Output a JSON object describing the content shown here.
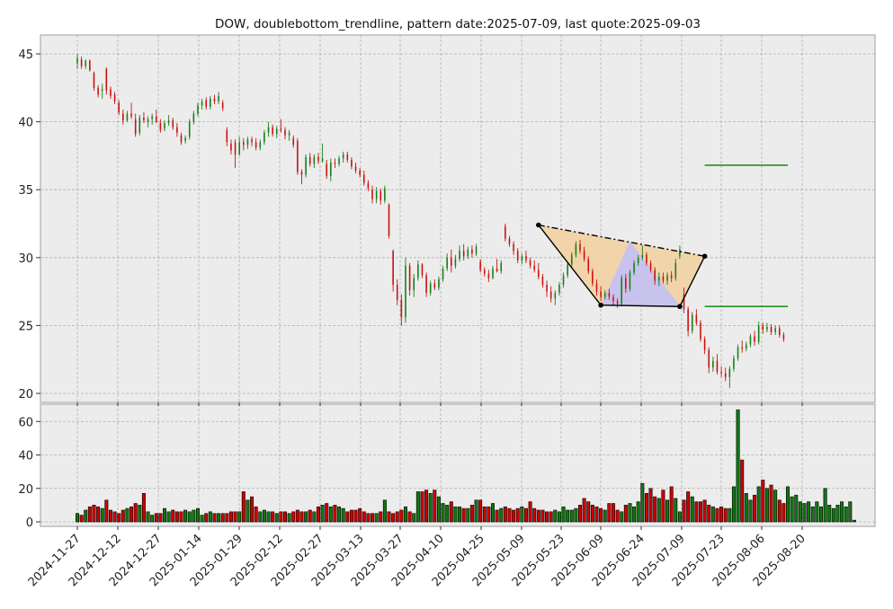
{
  "chart_data": {
    "type": "candlestick",
    "title": "DOW, doublebottom_trendline, pattern date:2025-07-09, last quote:2025-09-03",
    "x_tick_labels": [
      "2024-11-27",
      "2024-12-12",
      "2024-12-27",
      "2025-01-14",
      "2025-01-29",
      "2025-02-12",
      "2025-02-27",
      "2025-03-13",
      "2025-03-27",
      "2025-04-10",
      "2025-04-25",
      "2025-05-09",
      "2025-05-23",
      "2025-06-09",
      "2025-06-24",
      "2025-07-09",
      "2025-07-23",
      "2025-08-06",
      "2025-08-20"
    ],
    "price_axis": {
      "ylim": [
        19.5,
        46.5
      ],
      "ticks": [
        20,
        25,
        30,
        35,
        40,
        45
      ]
    },
    "volume_axis": {
      "ylim": [
        -3,
        70
      ],
      "ticks": [
        0,
        20,
        40,
        60
      ]
    },
    "grid": true,
    "colors": {
      "up": "#1a7f1a",
      "down": "#cc1111",
      "background": "#ececec",
      "pattern_fill": "#f2d3a6",
      "inner_fill": "#c5c2f0",
      "target_line": "#008000"
    },
    "price_series": [
      {
        "o": 44.3,
        "h": 45.0,
        "l": 43.9,
        "c": 44.7
      },
      {
        "o": 44.6,
        "h": 44.8,
        "l": 43.9,
        "c": 44.1
      },
      {
        "o": 44.1,
        "h": 44.6,
        "l": 43.9,
        "c": 44.5
      },
      {
        "o": 44.5,
        "h": 44.6,
        "l": 43.7,
        "c": 43.8
      },
      {
        "o": 43.6,
        "h": 43.7,
        "l": 42.3,
        "c": 42.5
      },
      {
        "o": 42.5,
        "h": 42.7,
        "l": 41.8,
        "c": 42.0
      },
      {
        "o": 42.3,
        "h": 42.8,
        "l": 41.7,
        "c": 42.4
      },
      {
        "o": 43.9,
        "h": 44.0,
        "l": 42.0,
        "c": 42.3
      },
      {
        "o": 42.4,
        "h": 42.6,
        "l": 41.7,
        "c": 41.9
      },
      {
        "o": 42.0,
        "h": 42.2,
        "l": 41.3,
        "c": 41.5
      },
      {
        "o": 41.4,
        "h": 41.6,
        "l": 40.5,
        "c": 40.7
      },
      {
        "o": 40.6,
        "h": 40.9,
        "l": 39.8,
        "c": 40.1
      },
      {
        "o": 40.1,
        "h": 40.8,
        "l": 40.0,
        "c": 40.6
      },
      {
        "o": 40.6,
        "h": 41.4,
        "l": 40.2,
        "c": 40.4
      },
      {
        "o": 40.2,
        "h": 40.6,
        "l": 38.9,
        "c": 39.1
      },
      {
        "o": 39.2,
        "h": 40.5,
        "l": 39.0,
        "c": 40.3
      },
      {
        "o": 40.3,
        "h": 40.7,
        "l": 39.9,
        "c": 40.1
      },
      {
        "o": 40.0,
        "h": 40.4,
        "l": 39.6,
        "c": 40.2
      },
      {
        "o": 40.2,
        "h": 40.6,
        "l": 39.8,
        "c": 40.4
      },
      {
        "o": 40.4,
        "h": 40.9,
        "l": 39.9,
        "c": 40.0
      },
      {
        "o": 39.9,
        "h": 40.2,
        "l": 39.2,
        "c": 39.4
      },
      {
        "o": 39.5,
        "h": 40.1,
        "l": 39.3,
        "c": 39.9
      },
      {
        "o": 39.9,
        "h": 40.5,
        "l": 39.7,
        "c": 40.1
      },
      {
        "o": 40.1,
        "h": 40.3,
        "l": 39.4,
        "c": 39.6
      },
      {
        "o": 39.6,
        "h": 39.9,
        "l": 38.9,
        "c": 39.2
      },
      {
        "o": 39.0,
        "h": 39.2,
        "l": 38.3,
        "c": 38.5
      },
      {
        "o": 38.6,
        "h": 39.0,
        "l": 38.4,
        "c": 38.8
      },
      {
        "o": 38.9,
        "h": 40.2,
        "l": 38.7,
        "c": 40.0
      },
      {
        "o": 40.0,
        "h": 40.8,
        "l": 39.8,
        "c": 40.6
      },
      {
        "o": 40.6,
        "h": 41.4,
        "l": 40.4,
        "c": 41.2
      },
      {
        "o": 41.2,
        "h": 41.7,
        "l": 40.9,
        "c": 41.5
      },
      {
        "o": 41.6,
        "h": 41.8,
        "l": 40.9,
        "c": 41.1
      },
      {
        "o": 41.1,
        "h": 41.9,
        "l": 40.9,
        "c": 41.7
      },
      {
        "o": 41.7,
        "h": 42.0,
        "l": 41.3,
        "c": 41.5
      },
      {
        "o": 41.5,
        "h": 42.2,
        "l": 41.3,
        "c": 41.9
      },
      {
        "o": 41.4,
        "h": 41.6,
        "l": 40.8,
        "c": 41.0
      },
      {
        "o": 39.4,
        "h": 39.6,
        "l": 38.2,
        "c": 38.5
      },
      {
        "o": 38.4,
        "h": 38.7,
        "l": 37.6,
        "c": 37.9
      },
      {
        "o": 38.5,
        "h": 38.7,
        "l": 36.6,
        "c": 37.6
      },
      {
        "o": 37.6,
        "h": 38.9,
        "l": 37.5,
        "c": 38.5
      },
      {
        "o": 38.5,
        "h": 38.8,
        "l": 37.9,
        "c": 38.3
      },
      {
        "o": 38.3,
        "h": 38.9,
        "l": 38.0,
        "c": 38.7
      },
      {
        "o": 38.7,
        "h": 38.9,
        "l": 38.2,
        "c": 38.5
      },
      {
        "o": 38.5,
        "h": 38.8,
        "l": 37.9,
        "c": 38.1
      },
      {
        "o": 38.1,
        "h": 38.7,
        "l": 37.9,
        "c": 38.5
      },
      {
        "o": 38.5,
        "h": 39.4,
        "l": 38.3,
        "c": 39.2
      },
      {
        "o": 39.2,
        "h": 40.0,
        "l": 38.9,
        "c": 39.6
      },
      {
        "o": 39.6,
        "h": 39.8,
        "l": 38.9,
        "c": 39.1
      },
      {
        "o": 39.1,
        "h": 39.7,
        "l": 38.8,
        "c": 39.5
      },
      {
        "o": 39.5,
        "h": 40.2,
        "l": 39.2,
        "c": 39.4
      },
      {
        "o": 39.4,
        "h": 39.6,
        "l": 38.7,
        "c": 39.0
      },
      {
        "o": 39.0,
        "h": 39.4,
        "l": 38.6,
        "c": 39.2
      },
      {
        "o": 38.8,
        "h": 39.0,
        "l": 38.1,
        "c": 38.3
      },
      {
        "o": 38.6,
        "h": 38.8,
        "l": 36.1,
        "c": 36.3
      },
      {
        "o": 36.3,
        "h": 36.5,
        "l": 35.4,
        "c": 36.1
      },
      {
        "o": 36.1,
        "h": 37.6,
        "l": 35.9,
        "c": 37.4
      },
      {
        "o": 37.4,
        "h": 37.7,
        "l": 36.7,
        "c": 36.9
      },
      {
        "o": 36.9,
        "h": 37.6,
        "l": 36.6,
        "c": 37.4
      },
      {
        "o": 37.4,
        "h": 37.7,
        "l": 36.9,
        "c": 37.1
      },
      {
        "o": 37.1,
        "h": 38.4,
        "l": 37.0,
        "c": 37.3
      },
      {
        "o": 36.9,
        "h": 37.2,
        "l": 35.8,
        "c": 36.0
      },
      {
        "o": 36.0,
        "h": 37.3,
        "l": 35.6,
        "c": 37.0
      },
      {
        "o": 37.0,
        "h": 37.3,
        "l": 36.6,
        "c": 36.9
      },
      {
        "o": 36.9,
        "h": 37.5,
        "l": 36.7,
        "c": 37.3
      },
      {
        "o": 37.3,
        "h": 37.8,
        "l": 37.0,
        "c": 37.6
      },
      {
        "o": 37.6,
        "h": 37.8,
        "l": 37.0,
        "c": 37.2
      },
      {
        "o": 37.2,
        "h": 37.4,
        "l": 36.5,
        "c": 36.7
      },
      {
        "o": 36.7,
        "h": 37.0,
        "l": 36.2,
        "c": 36.4
      },
      {
        "o": 36.4,
        "h": 36.6,
        "l": 35.9,
        "c": 36.1
      },
      {
        "o": 36.1,
        "h": 36.4,
        "l": 35.3,
        "c": 35.5
      },
      {
        "o": 35.5,
        "h": 35.7,
        "l": 34.9,
        "c": 35.1
      },
      {
        "o": 35.0,
        "h": 35.3,
        "l": 34.0,
        "c": 34.3
      },
      {
        "o": 34.3,
        "h": 35.2,
        "l": 34.0,
        "c": 34.9
      },
      {
        "o": 34.9,
        "h": 35.1,
        "l": 33.9,
        "c": 34.2
      },
      {
        "o": 34.2,
        "h": 35.3,
        "l": 34.0,
        "c": 35.1
      },
      {
        "o": 33.9,
        "h": 34.0,
        "l": 31.4,
        "c": 31.6
      },
      {
        "o": 30.5,
        "h": 30.6,
        "l": 27.5,
        "c": 28.0
      },
      {
        "o": 28.0,
        "h": 28.4,
        "l": 26.5,
        "c": 26.9
      },
      {
        "o": 26.9,
        "h": 27.3,
        "l": 25.0,
        "c": 25.6
      },
      {
        "o": 25.6,
        "h": 30.0,
        "l": 25.2,
        "c": 29.4
      },
      {
        "o": 29.4,
        "h": 29.6,
        "l": 27.2,
        "c": 27.6
      },
      {
        "o": 27.6,
        "h": 28.8,
        "l": 27.1,
        "c": 28.5
      },
      {
        "o": 28.5,
        "h": 29.8,
        "l": 28.3,
        "c": 29.5
      },
      {
        "o": 29.5,
        "h": 29.6,
        "l": 28.5,
        "c": 28.7
      },
      {
        "o": 28.7,
        "h": 28.9,
        "l": 27.1,
        "c": 27.4
      },
      {
        "o": 27.4,
        "h": 28.3,
        "l": 27.2,
        "c": 28.1
      },
      {
        "o": 28.1,
        "h": 28.4,
        "l": 27.6,
        "c": 27.8
      },
      {
        "o": 27.8,
        "h": 28.6,
        "l": 27.6,
        "c": 28.4
      },
      {
        "o": 28.4,
        "h": 29.4,
        "l": 28.2,
        "c": 29.2
      },
      {
        "o": 29.2,
        "h": 30.3,
        "l": 29.0,
        "c": 30.0
      },
      {
        "o": 30.0,
        "h": 30.6,
        "l": 28.9,
        "c": 29.4
      },
      {
        "o": 29.4,
        "h": 30.2,
        "l": 29.2,
        "c": 29.9
      },
      {
        "o": 29.9,
        "h": 30.9,
        "l": 29.7,
        "c": 30.5
      },
      {
        "o": 30.5,
        "h": 31.0,
        "l": 29.8,
        "c": 30.1
      },
      {
        "o": 30.1,
        "h": 30.8,
        "l": 29.9,
        "c": 30.6
      },
      {
        "o": 30.6,
        "h": 30.9,
        "l": 30.0,
        "c": 30.3
      },
      {
        "o": 30.3,
        "h": 31.0,
        "l": 30.1,
        "c": 30.8
      },
      {
        "o": 29.7,
        "h": 29.9,
        "l": 28.9,
        "c": 29.1
      },
      {
        "o": 29.1,
        "h": 29.3,
        "l": 28.6,
        "c": 28.8
      },
      {
        "o": 28.8,
        "h": 29.1,
        "l": 28.2,
        "c": 28.5
      },
      {
        "o": 28.5,
        "h": 29.4,
        "l": 28.4,
        "c": 29.2
      },
      {
        "o": 29.2,
        "h": 29.9,
        "l": 28.9,
        "c": 29.0
      },
      {
        "o": 29.0,
        "h": 29.8,
        "l": 28.8,
        "c": 29.6
      },
      {
        "o": 32.3,
        "h": 32.5,
        "l": 31.2,
        "c": 31.4
      },
      {
        "o": 31.4,
        "h": 31.6,
        "l": 30.8,
        "c": 31.0
      },
      {
        "o": 31.0,
        "h": 31.2,
        "l": 30.2,
        "c": 30.5
      },
      {
        "o": 30.5,
        "h": 30.7,
        "l": 29.6,
        "c": 29.8
      },
      {
        "o": 29.8,
        "h": 30.3,
        "l": 29.5,
        "c": 30.1
      },
      {
        "o": 30.1,
        "h": 30.5,
        "l": 29.6,
        "c": 29.8
      },
      {
        "o": 29.8,
        "h": 30.0,
        "l": 29.2,
        "c": 29.4
      },
      {
        "o": 29.4,
        "h": 29.8,
        "l": 28.9,
        "c": 29.1
      },
      {
        "o": 29.1,
        "h": 29.6,
        "l": 28.4,
        "c": 28.6
      },
      {
        "o": 28.6,
        "h": 28.8,
        "l": 27.8,
        "c": 28.0
      },
      {
        "o": 28.0,
        "h": 28.3,
        "l": 27.1,
        "c": 27.5
      },
      {
        "o": 27.5,
        "h": 27.9,
        "l": 26.7,
        "c": 27.0
      },
      {
        "o": 27.0,
        "h": 27.6,
        "l": 26.5,
        "c": 27.4
      },
      {
        "o": 27.4,
        "h": 28.2,
        "l": 27.2,
        "c": 28.0
      },
      {
        "o": 28.0,
        "h": 28.9,
        "l": 27.8,
        "c": 28.7
      },
      {
        "o": 28.7,
        "h": 29.7,
        "l": 28.5,
        "c": 29.5
      },
      {
        "o": 29.5,
        "h": 30.4,
        "l": 29.3,
        "c": 30.2
      },
      {
        "o": 30.2,
        "h": 31.2,
        "l": 30.0,
        "c": 31.0
      },
      {
        "o": 31.0,
        "h": 31.3,
        "l": 30.3,
        "c": 30.5
      },
      {
        "o": 30.5,
        "h": 30.8,
        "l": 29.7,
        "c": 29.9
      },
      {
        "o": 29.9,
        "h": 30.1,
        "l": 28.8,
        "c": 29.0
      },
      {
        "o": 29.0,
        "h": 29.2,
        "l": 27.9,
        "c": 28.1
      },
      {
        "o": 28.1,
        "h": 28.4,
        "l": 27.2,
        "c": 27.5
      },
      {
        "o": 27.5,
        "h": 27.9,
        "l": 26.8,
        "c": 27.1
      },
      {
        "o": 27.1,
        "h": 27.6,
        "l": 26.9,
        "c": 27.4
      },
      {
        "o": 27.4,
        "h": 27.7,
        "l": 26.9,
        "c": 27.1
      },
      {
        "o": 27.1,
        "h": 27.3,
        "l": 26.5,
        "c": 26.8
      },
      {
        "o": 26.8,
        "h": 27.0,
        "l": 26.3,
        "c": 26.6
      },
      {
        "o": 26.6,
        "h": 28.7,
        "l": 26.4,
        "c": 28.5
      },
      {
        "o": 28.5,
        "h": 28.8,
        "l": 27.4,
        "c": 27.7
      },
      {
        "o": 27.7,
        "h": 29.1,
        "l": 27.5,
        "c": 28.9
      },
      {
        "o": 28.9,
        "h": 29.8,
        "l": 28.7,
        "c": 29.6
      },
      {
        "o": 29.6,
        "h": 30.2,
        "l": 29.4,
        "c": 30.0
      },
      {
        "o": 30.0,
        "h": 30.9,
        "l": 29.8,
        "c": 30.2
      },
      {
        "o": 30.2,
        "h": 30.4,
        "l": 29.4,
        "c": 29.6
      },
      {
        "o": 29.6,
        "h": 29.8,
        "l": 28.9,
        "c": 29.1
      },
      {
        "o": 29.1,
        "h": 29.3,
        "l": 28.0,
        "c": 28.3
      },
      {
        "o": 28.3,
        "h": 28.9,
        "l": 27.9,
        "c": 28.6
      },
      {
        "o": 28.6,
        "h": 28.9,
        "l": 28.1,
        "c": 28.3
      },
      {
        "o": 28.3,
        "h": 28.9,
        "l": 28.0,
        "c": 28.7
      },
      {
        "o": 28.7,
        "h": 29.0,
        "l": 28.2,
        "c": 28.5
      },
      {
        "o": 28.5,
        "h": 29.9,
        "l": 28.3,
        "c": 29.6
      },
      {
        "o": 30.1,
        "h": 30.9,
        "l": 29.9,
        "c": 30.6
      },
      {
        "o": 27.3,
        "h": 27.8,
        "l": 25.9,
        "c": 26.2
      },
      {
        "o": 26.2,
        "h": 26.4,
        "l": 24.2,
        "c": 24.6
      },
      {
        "o": 24.6,
        "h": 26.0,
        "l": 24.4,
        "c": 25.8
      },
      {
        "o": 25.8,
        "h": 26.2,
        "l": 25.0,
        "c": 25.2
      },
      {
        "o": 25.2,
        "h": 25.4,
        "l": 23.8,
        "c": 24.0
      },
      {
        "o": 24.0,
        "h": 24.2,
        "l": 22.9,
        "c": 23.2
      },
      {
        "o": 23.2,
        "h": 23.4,
        "l": 21.5,
        "c": 21.9
      },
      {
        "o": 21.9,
        "h": 22.7,
        "l": 21.6,
        "c": 22.4
      },
      {
        "o": 22.4,
        "h": 22.9,
        "l": 21.4,
        "c": 21.6
      },
      {
        "o": 21.6,
        "h": 22.0,
        "l": 21.2,
        "c": 21.5
      },
      {
        "o": 21.5,
        "h": 21.9,
        "l": 20.9,
        "c": 21.2
      },
      {
        "o": 21.2,
        "h": 22.0,
        "l": 20.4,
        "c": 21.8
      },
      {
        "o": 21.8,
        "h": 22.8,
        "l": 21.6,
        "c": 22.6
      },
      {
        "o": 22.6,
        "h": 23.6,
        "l": 22.4,
        "c": 23.4
      },
      {
        "o": 23.4,
        "h": 23.9,
        "l": 23.0,
        "c": 23.3
      },
      {
        "o": 23.3,
        "h": 23.8,
        "l": 23.1,
        "c": 23.6
      },
      {
        "o": 23.6,
        "h": 24.4,
        "l": 23.4,
        "c": 24.2
      },
      {
        "o": 24.2,
        "h": 24.6,
        "l": 23.5,
        "c": 23.8
      },
      {
        "o": 23.8,
        "h": 25.3,
        "l": 23.6,
        "c": 25.0
      },
      {
        "o": 25.0,
        "h": 25.2,
        "l": 24.4,
        "c": 24.7
      },
      {
        "o": 24.7,
        "h": 25.2,
        "l": 24.5,
        "c": 24.9
      },
      {
        "o": 24.9,
        "h": 25.1,
        "l": 24.3,
        "c": 24.5
      },
      {
        "o": 24.5,
        "h": 25.0,
        "l": 24.3,
        "c": 24.8
      },
      {
        "o": 24.8,
        "h": 25.0,
        "l": 24.1,
        "c": 24.3
      },
      {
        "o": 24.3,
        "h": 24.5,
        "l": 23.8,
        "c": 24.0
      }
    ],
    "volume_series": [
      5,
      4,
      7,
      9,
      10,
      9,
      8,
      13,
      7,
      6,
      5,
      7,
      8,
      9,
      11,
      10,
      17,
      6,
      4,
      5,
      5,
      8,
      6,
      7,
      6,
      6,
      7,
      6,
      7,
      8,
      4,
      5,
      6,
      5,
      5,
      5,
      5,
      6,
      6,
      6,
      18,
      13,
      15,
      9,
      6,
      7,
      6,
      6,
      5,
      6,
      6,
      5,
      6,
      7,
      6,
      6,
      7,
      6,
      9,
      10,
      11,
      9,
      10,
      9,
      8,
      6,
      7,
      7,
      8,
      6,
      5,
      5,
      5,
      6,
      13,
      6,
      5,
      6,
      7,
      9,
      6,
      5,
      18,
      18,
      19,
      17,
      19,
      15,
      11,
      10,
      12,
      9,
      9,
      8,
      8,
      10,
      13,
      13,
      9,
      9,
      11,
      7,
      8,
      9,
      8,
      7,
      8,
      9,
      8,
      12,
      8,
      7,
      7,
      6,
      6,
      7,
      6,
      9,
      7,
      7,
      8,
      10,
      14,
      12,
      10,
      9,
      8,
      7,
      11,
      11,
      7,
      6,
      10,
      11,
      9,
      12,
      23,
      17,
      20,
      15,
      14,
      19,
      13,
      21,
      14,
      6,
      13,
      18,
      15,
      12,
      12,
      13,
      10,
      9,
      8,
      9,
      8,
      8,
      21,
      67,
      37,
      17,
      13,
      16,
      21,
      25,
      20,
      22,
      19,
      13,
      11,
      21,
      15,
      16,
      12,
      11,
      12,
      9,
      12,
      9,
      20,
      10,
      8,
      10,
      12,
      9,
      12,
      1
    ]
  },
  "overlays": {
    "pattern_points": [
      {
        "label": "P1",
        "t": 111,
        "price": 32.4
      },
      {
        "label": "P2",
        "t": 126,
        "price": 26.5
      },
      {
        "label": "P3",
        "t": 145,
        "price": 26.4
      },
      {
        "label": "P4",
        "t": 151,
        "price": 30.1
      }
    ],
    "inner_bottom": {
      "t0": 126,
      "t1": 145,
      "price": 26.45,
      "peak_t": 133,
      "peak_price": 31.2
    },
    "target_lines": [
      {
        "price": 36.8,
        "t0": 151,
        "t1": 171
      },
      {
        "price": 26.4,
        "t0": 151,
        "t1": 171
      }
    ]
  }
}
